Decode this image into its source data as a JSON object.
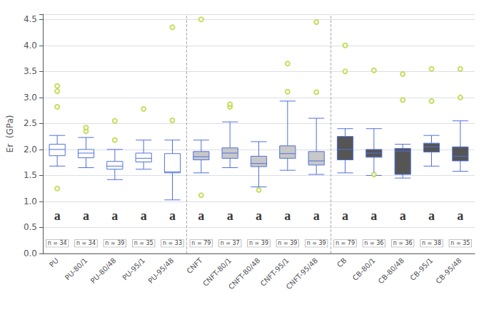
{
  "chart_data": {
    "type": "box",
    "ylabel": "Er  (GPa)",
    "categories": [
      "PU",
      "PU-80/1",
      "PU-80/48",
      "PU-95/1",
      "PU-95/48",
      "CNFT",
      "CNFT-80/1",
      "CNFT-80/48",
      "CNFT-95/1",
      "CNFT-95/48",
      "CB",
      "CB-80/1",
      "CB-80/48",
      "CB-95/1",
      "CB-95/48"
    ],
    "colors": [
      "white",
      "white",
      "white",
      "white",
      "white",
      "#c8c8c8",
      "#c8c8c8",
      "#c8c8c8",
      "#c8c8c8",
      "#c8c8c8",
      "#555555",
      "#555555",
      "#555555",
      "#555555",
      "#555555"
    ],
    "boxes": [
      {
        "q1": 1.88,
        "median": 2.0,
        "q3": 2.1,
        "whislo": 1.68,
        "whishi": 2.27,
        "fliers": [
          1.25,
          2.82,
          3.12,
          3.22
        ]
      },
      {
        "q1": 1.84,
        "median": 1.93,
        "q3": 2.0,
        "whislo": 1.65,
        "whishi": 2.23,
        "fliers": [
          2.35,
          2.42
        ]
      },
      {
        "q1": 1.62,
        "median": 1.68,
        "q3": 1.77,
        "whislo": 1.42,
        "whishi": 2.0,
        "fliers": [
          2.18,
          2.55
        ]
      },
      {
        "q1": 1.76,
        "median": 1.83,
        "q3": 1.93,
        "whislo": 1.62,
        "whishi": 2.18,
        "fliers": [
          2.78
        ]
      },
      {
        "q1": 1.55,
        "median": 1.57,
        "q3": 1.92,
        "whislo": 1.03,
        "whishi": 2.18,
        "fliers": [
          2.56,
          4.35
        ]
      },
      {
        "q1": 1.8,
        "median": 1.86,
        "q3": 1.96,
        "whislo": 1.55,
        "whishi": 2.18,
        "fliers": [
          1.12,
          4.5
        ]
      },
      {
        "q1": 1.83,
        "median": 1.93,
        "q3": 2.03,
        "whislo": 1.65,
        "whishi": 2.53,
        "fliers": [
          2.82,
          2.87
        ]
      },
      {
        "q1": 1.67,
        "median": 1.73,
        "q3": 1.87,
        "whislo": 1.28,
        "whishi": 2.15,
        "fliers": [
          1.22
        ]
      },
      {
        "q1": 1.83,
        "median": 1.92,
        "q3": 2.07,
        "whislo": 1.6,
        "whishi": 2.93,
        "fliers": [
          3.11,
          3.65
        ]
      },
      {
        "q1": 1.7,
        "median": 1.78,
        "q3": 1.96,
        "whislo": 1.52,
        "whishi": 2.6,
        "fliers": [
          3.1,
          4.45
        ]
      },
      {
        "q1": 1.8,
        "median": 2.0,
        "q3": 2.25,
        "whislo": 1.55,
        "whishi": 2.4,
        "fliers": [
          3.5,
          4.0
        ]
      },
      {
        "q1": 1.85,
        "median": 1.93,
        "q3": 2.0,
        "whislo": 1.5,
        "whishi": 2.4,
        "fliers": [
          1.52,
          3.52
        ]
      },
      {
        "q1": 1.52,
        "median": 1.97,
        "q3": 2.02,
        "whislo": 1.45,
        "whishi": 2.1,
        "fliers": [
          3.45,
          2.95
        ]
      },
      {
        "q1": 1.95,
        "median": 2.05,
        "q3": 2.12,
        "whislo": 1.68,
        "whishi": 2.27,
        "fliers": [
          2.93,
          3.55
        ]
      },
      {
        "q1": 1.78,
        "median": 1.87,
        "q3": 2.05,
        "whislo": 1.58,
        "whishi": 2.55,
        "fliers": [
          3.55,
          3.0
        ]
      }
    ],
    "separators": [
      5,
      10
    ],
    "annotations": [
      {
        "text": "a",
        "x": "PU",
        "y": 0.73
      },
      {
        "text": "a",
        "x": "PU-80/1",
        "y": 0.73
      },
      {
        "text": "a",
        "x": "PU-80/48",
        "y": 0.73
      },
      {
        "text": "a",
        "x": "PU-95/1",
        "y": 0.73
      },
      {
        "text": "a",
        "x": "PU-95/48",
        "y": 0.73
      },
      {
        "text": "a",
        "x": "CNFT",
        "y": 0.73
      },
      {
        "text": "a",
        "x": "CNFT-80/1",
        "y": 0.73
      },
      {
        "text": "a",
        "x": "CNFT-80/48",
        "y": 0.73
      },
      {
        "text": "a",
        "x": "CNFT-95/1",
        "y": 0.73
      },
      {
        "text": "a",
        "x": "CNFT-95/48",
        "y": 0.73
      },
      {
        "text": "a",
        "x": "CB",
        "y": 0.73
      },
      {
        "text": "a",
        "x": "CB-80/1",
        "y": 0.73
      },
      {
        "text": "a",
        "x": "CB-80/48",
        "y": 0.73
      },
      {
        "text": "a",
        "x": "CB-95/1",
        "y": 0.73
      },
      {
        "text": "a",
        "x": "CB-95/48",
        "y": 0.73
      },
      {
        "text": "n = 34",
        "x": "PU",
        "y": 0.195
      },
      {
        "text": "n = 34",
        "x": "PU-80/1",
        "y": 0.195
      },
      {
        "text": "n = 39",
        "x": "PU-80/48",
        "y": 0.195
      },
      {
        "text": "n = 35",
        "x": "PU-95/1",
        "y": 0.195
      },
      {
        "text": "n = 33",
        "x": "PU-95/48",
        "y": 0.195
      },
      {
        "text": "n = 79",
        "x": "CNFT",
        "y": 0.195
      },
      {
        "text": "n = 37",
        "x": "CNFT-80/1",
        "y": 0.195
      },
      {
        "text": "n = 39",
        "x": "CNFT-80/48",
        "y": 0.195
      },
      {
        "text": "n = 39",
        "x": "CNFT-95/1",
        "y": 0.195
      },
      {
        "text": "n = 39",
        "x": "CNFT-95/48",
        "y": 0.195
      },
      {
        "text": "n = 79",
        "x": "CB",
        "y": 0.195
      },
      {
        "text": "n = 36",
        "x": "CB-80/1",
        "y": 0.195
      },
      {
        "text": "n = 36",
        "x": "CB-80/48",
        "y": 0.195
      },
      {
        "text": "n = 38",
        "x": "CB-95/1",
        "y": 0.195
      },
      {
        "text": "n = 35",
        "x": "CB-95/48",
        "y": 0.195
      }
    ],
    "ylim": [
      0,
      4.6
    ],
    "yticks": [
      {
        "value": 0,
        "label": "0.0"
      },
      0.5,
      {
        "value": 1,
        "label": "1.0"
      },
      1.5,
      {
        "value": 2,
        "label": "2.0"
      },
      2.5,
      {
        "value": 3,
        "label": "3.0"
      },
      3.5,
      {
        "value": 4,
        "label": "4.0"
      },
      4.5
    ],
    "grid": true
  }
}
